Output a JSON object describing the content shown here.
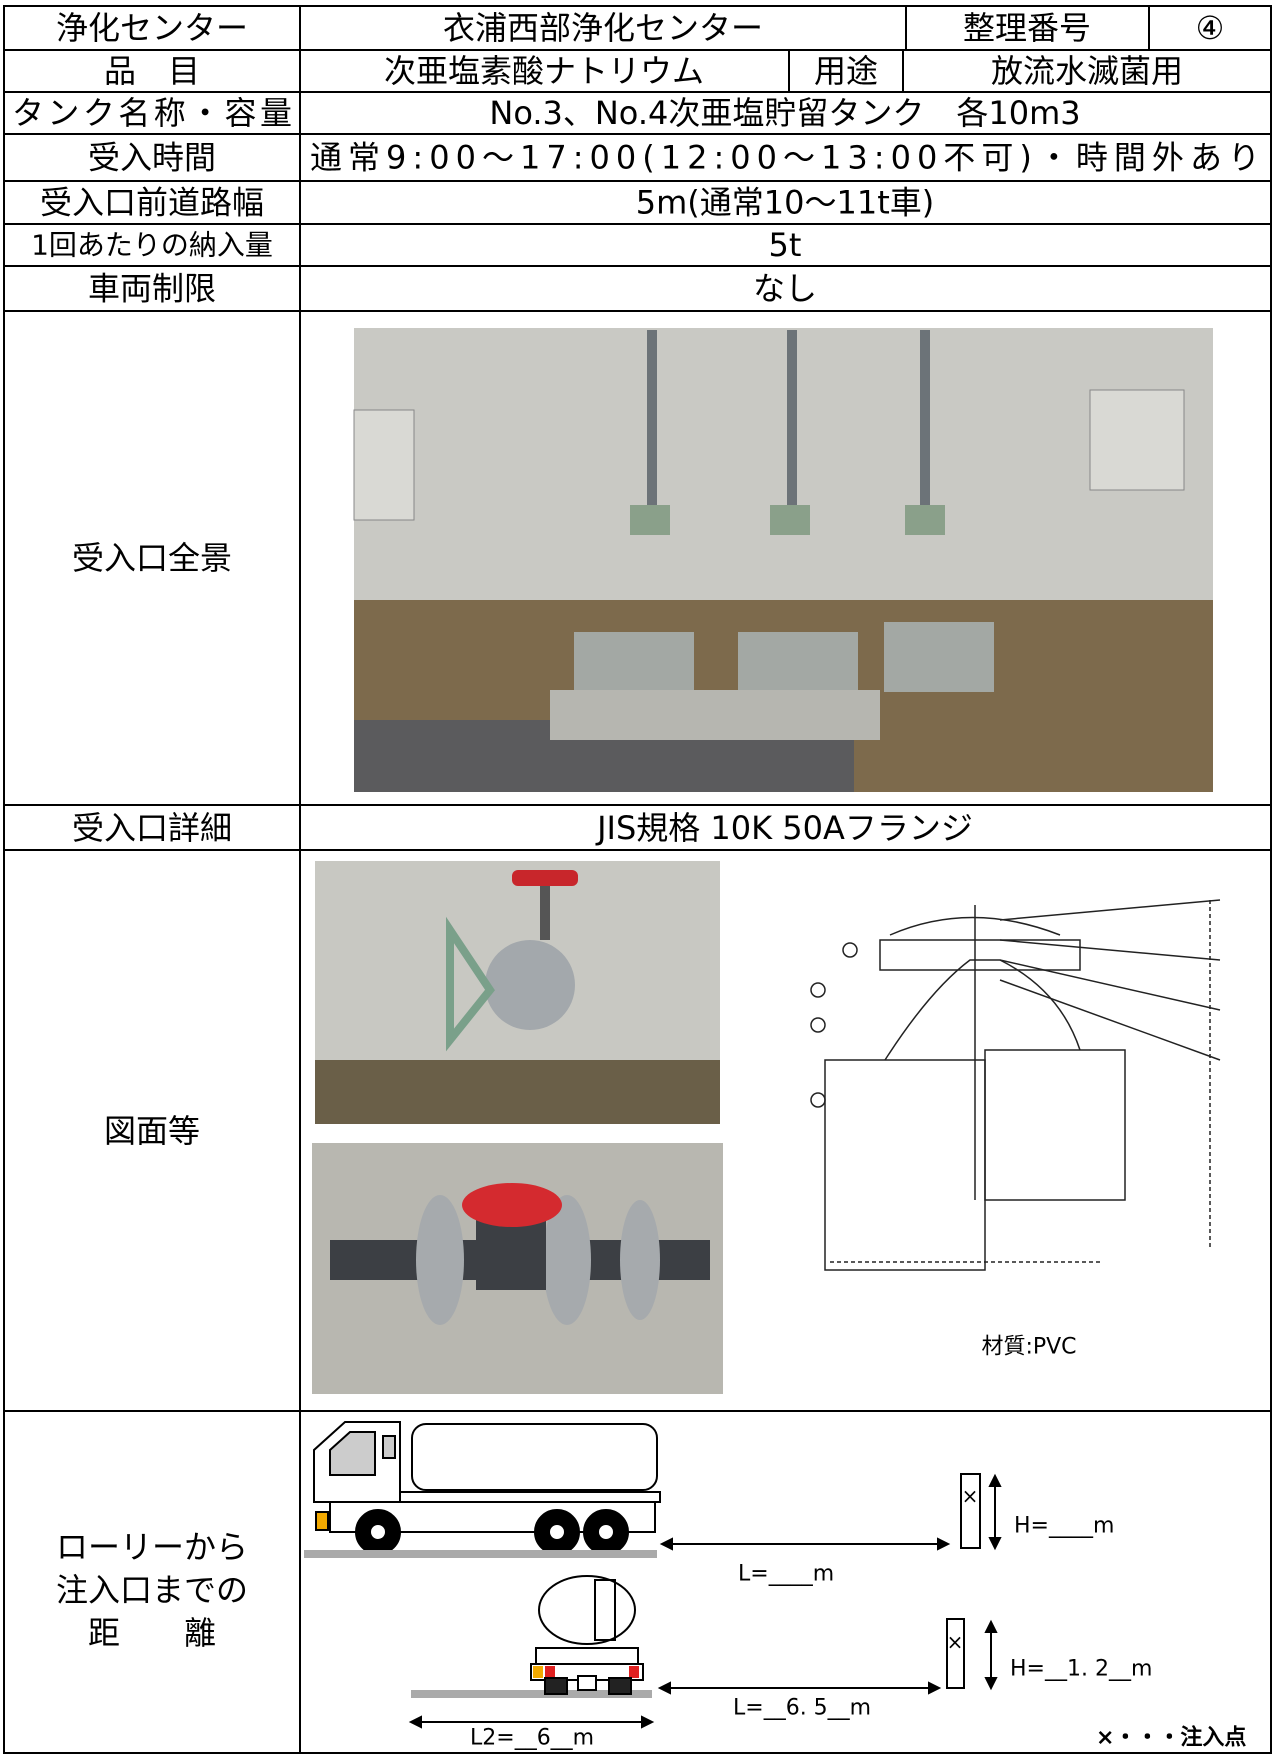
{
  "header": {
    "label": "浄化センター",
    "name": "衣浦西部浄化センター",
    "number_label": "整理番号",
    "number": "④"
  },
  "item": {
    "label": "品　目",
    "value": "次亜塩素酸ナトリウム",
    "use_label": "用途",
    "use": "放流水滅菌用"
  },
  "rows": [
    {
      "label": "タンク名称・容量",
      "value": "No.3、No.4次亜塩貯留タンク　各10m3"
    },
    {
      "label": "受入時間",
      "value": "通常9:00～17:00(12:00～13:00不可)・時間外あり"
    },
    {
      "label": "受入口前道路幅",
      "value": "5m(通常10～11t車)"
    },
    {
      "label": "1回あたりの納入量",
      "value": "5t"
    },
    {
      "label": "車両制限",
      "value": "なし"
    }
  ],
  "overview": {
    "label": "受入口全景"
  },
  "detail": {
    "label": "受入口詳細",
    "value": "JIS規格 10K 50Aフランジ"
  },
  "drawings": {
    "label": "図面等",
    "material": "材質:PVC"
  },
  "distance": {
    "label": [
      "ローリーから",
      "注入口までの",
      "距　　離"
    ],
    "side_h": "H=____m",
    "side_l": "L=____m",
    "rear_h": "H=__1. 2__m",
    "rear_l": "L=__6. 5__m",
    "rear_l2": "L2=__6__m",
    "legend": "×・・・注入点"
  }
}
